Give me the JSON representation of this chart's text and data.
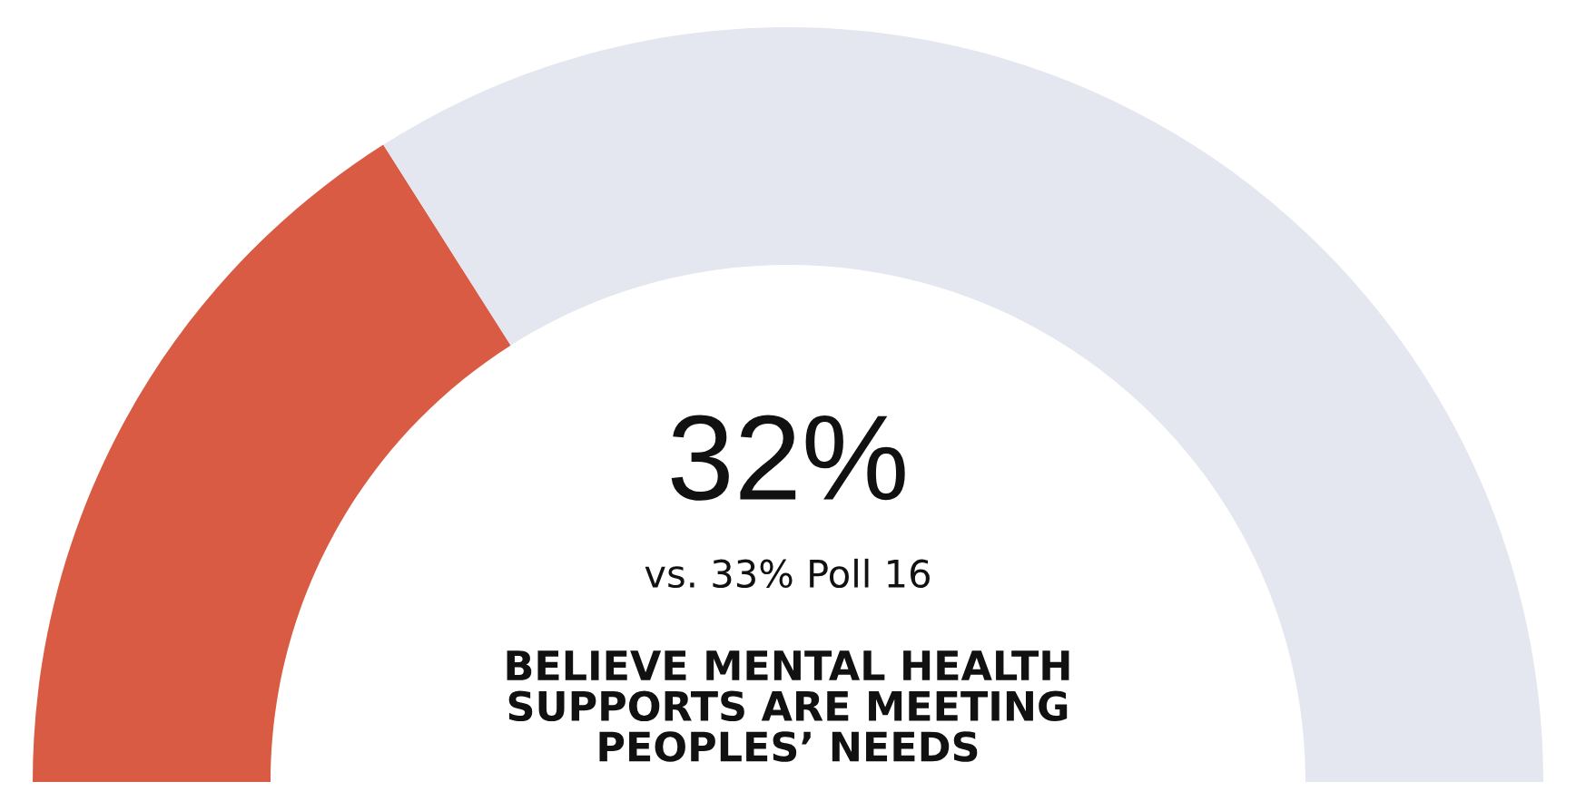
{
  "chart_data": {
    "type": "donut",
    "categories": [
      null,
      null
    ],
    "values": [
      32,
      68
    ],
    "colors": [
      "#d95b43",
      "#e4e7ef"
    ],
    "annotations": [
      "32%",
      "vs. 33% Poll 16"
    ],
    "subtitle": "BELIEVE MENTAL HEALTH SUPPORTS ARE MEETING PEOPLES’ NEEDS"
  }
}
